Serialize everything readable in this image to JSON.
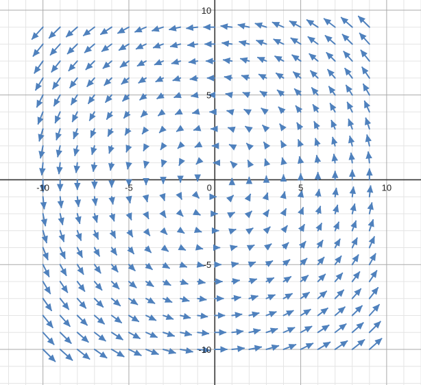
{
  "chart_data": {
    "type": "vector-field",
    "title": "",
    "xlabel": "",
    "ylabel": "",
    "xlim": [
      -12.5,
      12.0
    ],
    "ylim": [
      -12.1,
      10.6
    ],
    "grid": true,
    "minor_grid_step": 1,
    "major_grid_step": 5,
    "x_ticks": [
      {
        "value": -10,
        "label": "-10"
      },
      {
        "value": -5,
        "label": "-5"
      },
      {
        "value": 0,
        "label": "0"
      },
      {
        "value": 5,
        "label": "5"
      },
      {
        "value": 10,
        "label": "10"
      }
    ],
    "y_ticks": [
      {
        "value": 10,
        "label": "10"
      },
      {
        "value": 5,
        "label": "5"
      },
      {
        "value": -5,
        "label": "-5"
      },
      {
        "value": -10,
        "label": "-10"
      }
    ],
    "field": {
      "description_formula": "F(x, y) = (-y, x)",
      "sample_x_range": [
        -10,
        9
      ],
      "sample_y_range": [
        -10,
        9
      ],
      "sample_step": 1,
      "max_arrow_length": 1.0
    },
    "colors": {
      "arrow": "#4f81bd",
      "minor_grid": "#e4e4e4",
      "major_grid": "#a9a9a9",
      "axis": "#333333"
    }
  }
}
